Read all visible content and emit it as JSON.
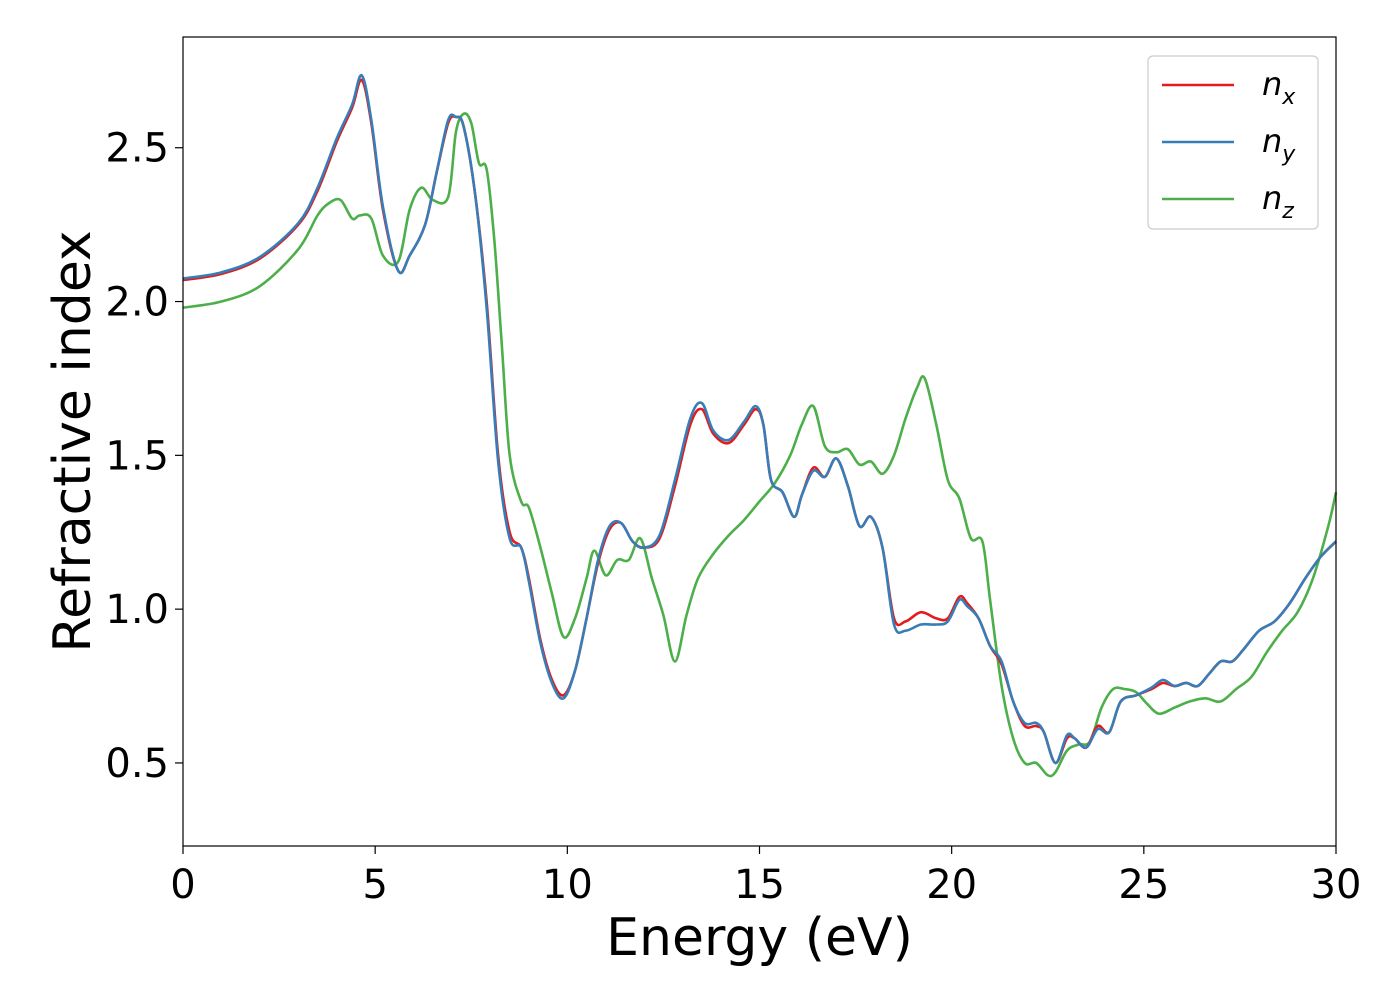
{
  "chart_data": {
    "type": "line",
    "title": "",
    "xlabel": "Energy (eV)",
    "ylabel": "Refractive index",
    "xlim": [
      0,
      30
    ],
    "ylim": [
      0.23,
      2.86
    ],
    "xticks": [
      0,
      5,
      10,
      15,
      20,
      25,
      30
    ],
    "xtick_labels": [
      "0",
      "5",
      "10",
      "15",
      "20",
      "25",
      "30"
    ],
    "yticks": [
      0.5,
      1.0,
      1.5,
      2.0,
      2.5
    ],
    "ytick_labels": [
      "0.5",
      "1.0",
      "1.5",
      "2.0",
      "2.5"
    ],
    "grid": false,
    "legend_position": "top-right",
    "series": [
      {
        "name": "n_x",
        "label_main": "n",
        "label_sub": "x",
        "color": "#e41a1c",
        "x": [
          0,
          1,
          2,
          3,
          3.5,
          4,
          4.4,
          4.65,
          4.9,
          5.2,
          5.6,
          5.9,
          6.3,
          6.6,
          6.9,
          7.1,
          7.3,
          7.6,
          7.9,
          8.2,
          8.5,
          8.8,
          9.0,
          9.3,
          9.6,
          9.9,
          10.2,
          10.5,
          10.8,
          11.1,
          11.4,
          11.7,
          12.0,
          12.4,
          12.8,
          13.2,
          13.5,
          13.8,
          14.2,
          14.6,
          14.9,
          15.1,
          15.3,
          15.6,
          15.9,
          16.1,
          16.4,
          16.7,
          17.0,
          17.3,
          17.6,
          17.9,
          18.2,
          18.5,
          18.8,
          19.2,
          19.6,
          19.9,
          20.2,
          20.4,
          20.7,
          21.0,
          21.3,
          21.6,
          21.9,
          22.2,
          22.4,
          22.7,
          23.0,
          23.2,
          23.5,
          23.8,
          24.1,
          24.4,
          24.8,
          25.2,
          25.5,
          25.8,
          26.1,
          26.4,
          26.7,
          27.0,
          27.3,
          27.6,
          28.0,
          28.4,
          28.8,
          29.2,
          29.6,
          30.0
        ],
        "y": [
          2.07,
          2.09,
          2.14,
          2.25,
          2.36,
          2.52,
          2.63,
          2.72,
          2.58,
          2.3,
          2.1,
          2.15,
          2.25,
          2.42,
          2.58,
          2.6,
          2.57,
          2.35,
          2.0,
          1.5,
          1.25,
          1.2,
          1.1,
          0.9,
          0.77,
          0.72,
          0.8,
          0.97,
          1.15,
          1.26,
          1.28,
          1.22,
          1.2,
          1.23,
          1.4,
          1.6,
          1.65,
          1.57,
          1.54,
          1.6,
          1.65,
          1.6,
          1.42,
          1.38,
          1.3,
          1.37,
          1.46,
          1.43,
          1.49,
          1.4,
          1.27,
          1.3,
          1.2,
          0.97,
          0.96,
          0.99,
          0.97,
          0.97,
          1.04,
          1.02,
          0.97,
          0.88,
          0.82,
          0.7,
          0.62,
          0.62,
          0.6,
          0.5,
          0.58,
          0.58,
          0.55,
          0.62,
          0.6,
          0.7,
          0.72,
          0.74,
          0.76,
          0.75,
          0.76,
          0.75,
          0.79,
          0.83,
          0.83,
          0.87,
          0.93,
          0.96,
          1.02,
          1.1,
          1.17,
          1.22
        ]
      },
      {
        "name": "n_y",
        "label_main": "n",
        "label_sub": "y",
        "color": "#377eb8",
        "x": [
          0,
          1,
          2,
          3,
          3.5,
          4,
          4.4,
          4.65,
          4.9,
          5.2,
          5.6,
          5.9,
          6.3,
          6.6,
          6.9,
          7.1,
          7.3,
          7.6,
          7.9,
          8.2,
          8.5,
          8.8,
          9.0,
          9.3,
          9.6,
          9.9,
          10.2,
          10.5,
          10.8,
          11.1,
          11.4,
          11.7,
          12.0,
          12.4,
          12.8,
          13.2,
          13.5,
          13.8,
          14.2,
          14.6,
          14.9,
          15.1,
          15.3,
          15.6,
          15.9,
          16.1,
          16.4,
          16.7,
          17.0,
          17.3,
          17.6,
          17.9,
          18.2,
          18.5,
          18.8,
          19.2,
          19.6,
          19.9,
          20.2,
          20.4,
          20.7,
          21.0,
          21.3,
          21.6,
          21.9,
          22.2,
          22.4,
          22.7,
          23.0,
          23.2,
          23.5,
          23.8,
          24.1,
          24.4,
          24.8,
          25.2,
          25.5,
          25.8,
          26.1,
          26.4,
          26.7,
          27.0,
          27.3,
          27.6,
          28.0,
          28.4,
          28.8,
          29.2,
          29.6,
          30.0
        ],
        "y": [
          2.075,
          2.095,
          2.145,
          2.255,
          2.37,
          2.53,
          2.64,
          2.735,
          2.59,
          2.31,
          2.1,
          2.15,
          2.25,
          2.42,
          2.59,
          2.6,
          2.57,
          2.35,
          1.98,
          1.48,
          1.23,
          1.2,
          1.09,
          0.89,
          0.76,
          0.71,
          0.8,
          0.97,
          1.16,
          1.27,
          1.28,
          1.22,
          1.2,
          1.24,
          1.42,
          1.62,
          1.67,
          1.58,
          1.55,
          1.61,
          1.66,
          1.6,
          1.42,
          1.38,
          1.3,
          1.37,
          1.45,
          1.43,
          1.49,
          1.4,
          1.27,
          1.3,
          1.2,
          0.95,
          0.93,
          0.95,
          0.95,
          0.96,
          1.03,
          1.01,
          0.97,
          0.88,
          0.83,
          0.7,
          0.63,
          0.63,
          0.6,
          0.5,
          0.59,
          0.58,
          0.55,
          0.61,
          0.6,
          0.7,
          0.72,
          0.745,
          0.77,
          0.75,
          0.76,
          0.75,
          0.79,
          0.83,
          0.83,
          0.87,
          0.93,
          0.96,
          1.02,
          1.1,
          1.17,
          1.22
        ]
      },
      {
        "name": "n_z",
        "label_main": "n",
        "label_sub": "z",
        "color": "#4daf4a",
        "x": [
          0,
          1,
          2,
          3,
          3.5,
          3.8,
          4.1,
          4.4,
          4.6,
          4.9,
          5.2,
          5.6,
          5.9,
          6.2,
          6.5,
          6.9,
          7.1,
          7.3,
          7.5,
          7.7,
          7.9,
          8.1,
          8.3,
          8.5,
          8.8,
          9.0,
          9.3,
          9.6,
          9.9,
          10.2,
          10.5,
          10.7,
          11.0,
          11.3,
          11.6,
          11.9,
          12.2,
          12.5,
          12.8,
          13.1,
          13.4,
          13.8,
          14.2,
          14.6,
          15.0,
          15.4,
          15.8,
          16.1,
          16.4,
          16.7,
          17.0,
          17.3,
          17.6,
          17.9,
          18.2,
          18.5,
          18.8,
          19.1,
          19.3,
          19.6,
          19.9,
          20.2,
          20.5,
          20.8,
          21.0,
          21.3,
          21.6,
          21.9,
          22.2,
          22.5,
          22.7,
          23.0,
          23.3,
          23.6,
          23.9,
          24.2,
          24.5,
          24.8,
          25.1,
          25.4,
          25.8,
          26.2,
          26.6,
          27.0,
          27.4,
          27.8,
          28.2,
          28.6,
          29.0,
          29.4,
          29.8,
          30.0
        ],
        "y": [
          1.98,
          2.0,
          2.05,
          2.17,
          2.28,
          2.32,
          2.33,
          2.27,
          2.28,
          2.27,
          2.15,
          2.13,
          2.3,
          2.37,
          2.33,
          2.34,
          2.55,
          2.61,
          2.58,
          2.45,
          2.43,
          2.2,
          1.85,
          1.5,
          1.35,
          1.33,
          1.2,
          1.05,
          0.91,
          0.97,
          1.1,
          1.19,
          1.11,
          1.16,
          1.16,
          1.23,
          1.1,
          0.98,
          0.83,
          0.98,
          1.1,
          1.18,
          1.24,
          1.29,
          1.35,
          1.41,
          1.5,
          1.6,
          1.66,
          1.53,
          1.51,
          1.52,
          1.47,
          1.48,
          1.44,
          1.5,
          1.62,
          1.72,
          1.75,
          1.6,
          1.42,
          1.36,
          1.23,
          1.22,
          1.03,
          0.75,
          0.58,
          0.5,
          0.5,
          0.46,
          0.47,
          0.54,
          0.56,
          0.57,
          0.68,
          0.74,
          0.74,
          0.73,
          0.69,
          0.66,
          0.68,
          0.7,
          0.71,
          0.7,
          0.74,
          0.78,
          0.86,
          0.93,
          0.99,
          1.1,
          1.27,
          1.38
        ]
      }
    ]
  }
}
